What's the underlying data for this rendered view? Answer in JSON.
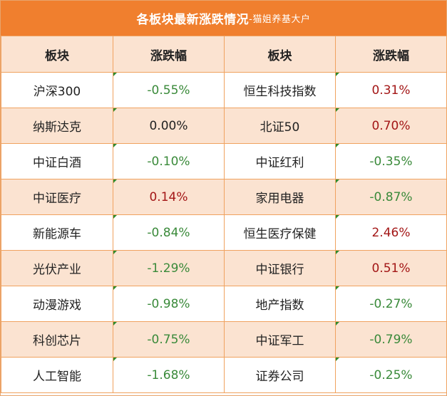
{
  "title": {
    "main": "各板块最新涨跌情况",
    "sub": "-猫姐养基大户"
  },
  "headers": [
    "板块",
    "涨跌幅",
    "板块",
    "涨跌幅"
  ],
  "rows": [
    {
      "left_name": "沪深300",
      "left_change": "-0.55%",
      "right_name": "恒生科技指数",
      "right_change": "0.31%"
    },
    {
      "left_name": "纳斯达克",
      "left_change": "0.00%",
      "right_name": "北证50",
      "right_change": "0.70%"
    },
    {
      "left_name": "中证白酒",
      "left_change": "-0.10%",
      "right_name": "中证红利",
      "right_change": "-0.35%"
    },
    {
      "left_name": "中证医疗",
      "left_change": "0.14%",
      "right_name": "家用电器",
      "right_change": "-0.87%"
    },
    {
      "left_name": "新能源车",
      "left_change": "-0.84%",
      "right_name": "恒生医疗保健",
      "right_change": "2.46%"
    },
    {
      "left_name": "光伏产业",
      "left_change": "-1.29%",
      "right_name": "中证银行",
      "right_change": "0.51%"
    },
    {
      "left_name": "动漫游戏",
      "left_change": "-0.98%",
      "right_name": "地产指数",
      "right_change": "-0.27%"
    },
    {
      "left_name": "科创芯片",
      "left_change": "-0.75%",
      "right_name": "中证军工",
      "right_change": "-0.79%"
    },
    {
      "left_name": "人工智能",
      "left_change": "-1.68%",
      "right_name": "证券公司",
      "right_change": "-0.25%"
    }
  ],
  "colors": {
    "title_bg": "#f07f2e",
    "band_bg": "#fbe3d1",
    "border": "#f0a25f",
    "negative": "#3a8a3a",
    "positive": "#a31616"
  }
}
